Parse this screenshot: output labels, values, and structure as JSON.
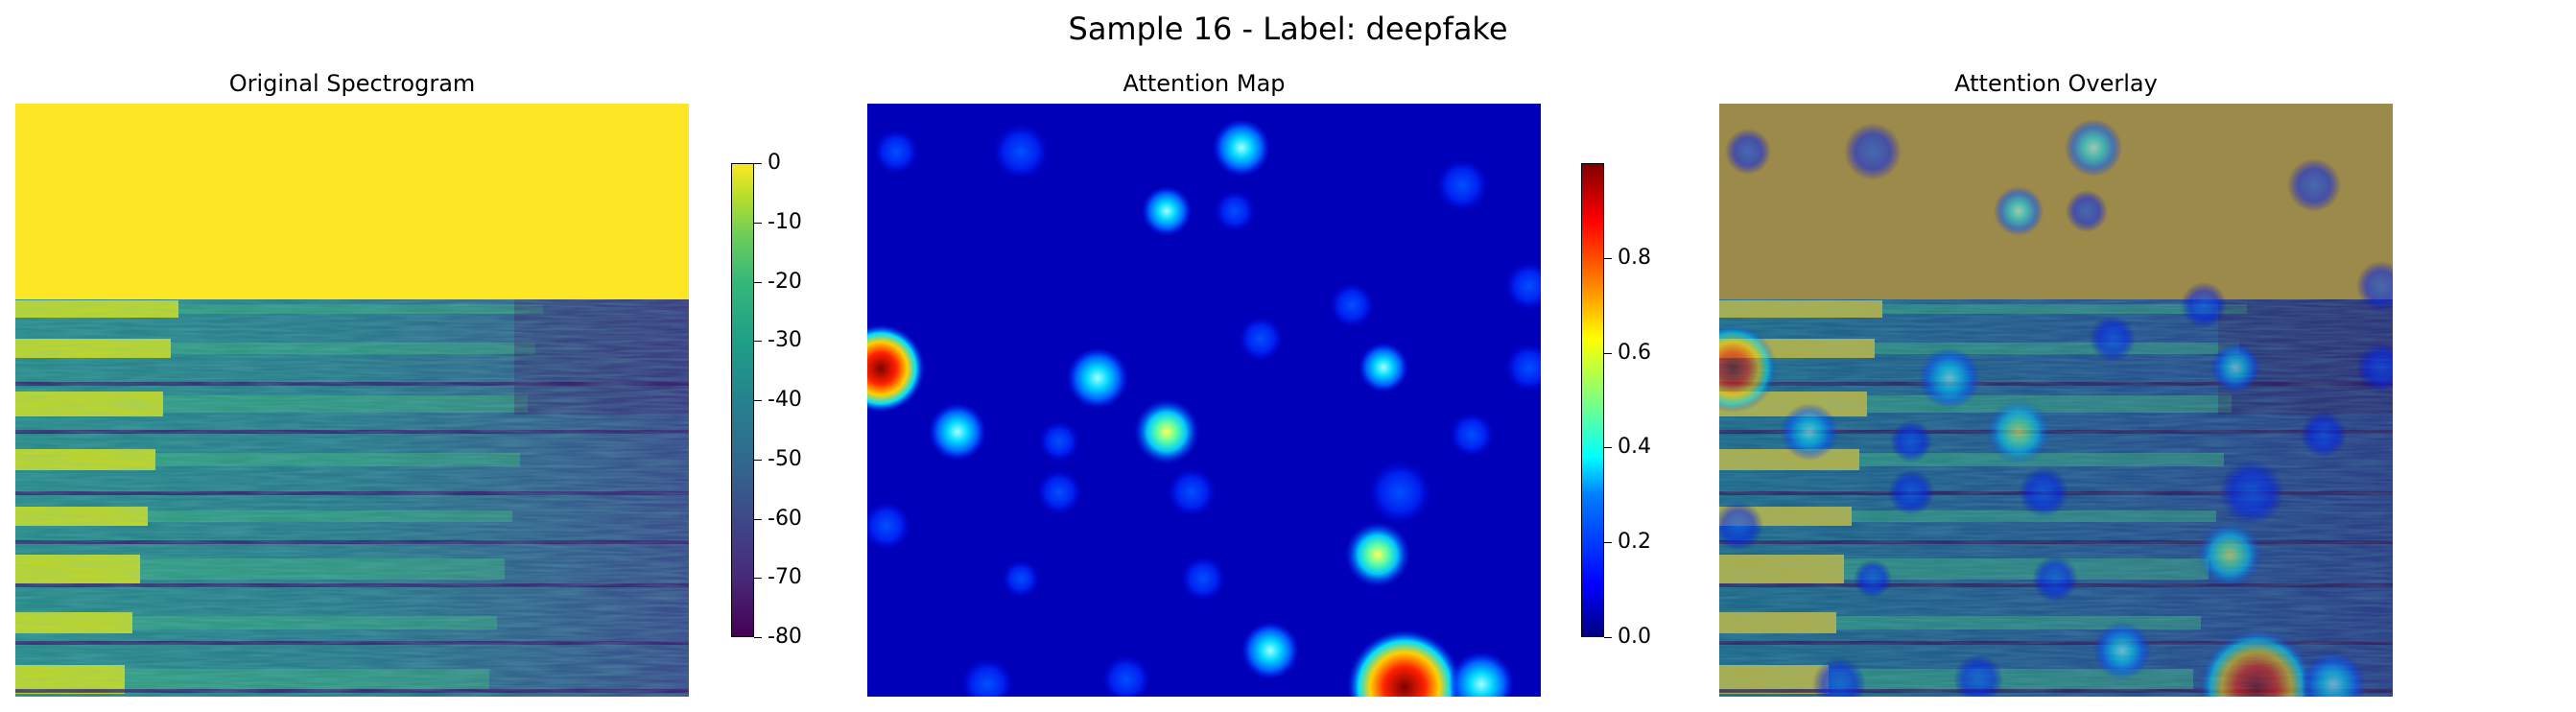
{
  "suptitle": "Sample 16 - Label: deepfake",
  "panels": {
    "original": {
      "title": "Original Spectrogram",
      "colormap": "viridis"
    },
    "attention": {
      "title": "Attention Map",
      "colormap": "jet"
    },
    "overlay": {
      "title": "Attention Overlay"
    }
  },
  "chart_data": [
    {
      "type": "heatmap",
      "title": "Original Spectrogram",
      "colorbar": {
        "range": [
          -80,
          0
        ],
        "ticks": [
          "0",
          "-10",
          "-20",
          "-30",
          "-40",
          "-50",
          "-60",
          "-70",
          "-80"
        ],
        "tick_values": [
          0,
          -10,
          -20,
          -30,
          -40,
          -50,
          -60,
          -70,
          -80
        ]
      },
      "colormap": "viridis",
      "axes_visible": false
    },
    {
      "type": "heatmap",
      "title": "Attention Map",
      "colorbar": {
        "range": [
          0,
          1.0
        ],
        "ticks": [
          "0.8",
          "0.6",
          "0.4",
          "0.2",
          "0.0"
        ],
        "tick_values": [
          0.8,
          0.6,
          0.4,
          0.2,
          0.0
        ]
      },
      "colormap": "jet",
      "axes_visible": false
    },
    {
      "type": "heatmap",
      "title": "Attention Overlay",
      "colormap": "jet over viridis",
      "axes_visible": false
    }
  ]
}
